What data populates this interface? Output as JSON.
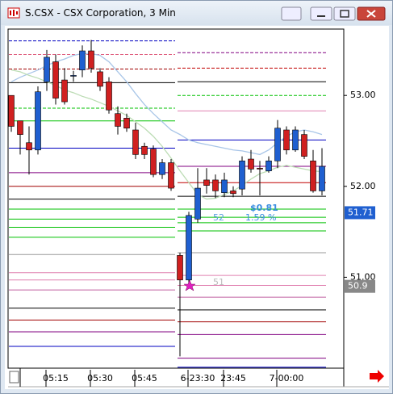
{
  "chart_data": {
    "type": "candlestick",
    "title": "S.CSX - CSX Corporation, 3 Min",
    "categories": [
      null,
      null,
      null,
      null,
      null,
      "05:15",
      null,
      null,
      null,
      null,
      "05:30",
      null,
      null,
      null,
      null,
      "05:45",
      null,
      null,
      null,
      null,
      null,
      "6-23:30",
      null,
      null,
      null,
      "23:45",
      null,
      null,
      null,
      null,
      null,
      "7-00:00",
      null,
      null,
      null,
      null
    ],
    "open": [
      53.0,
      52.72,
      52.48,
      52.4,
      53.15,
      53.37,
      53.17,
      53.22,
      53.28,
      53.49,
      53.26,
      53.15,
      52.8,
      52.75,
      52.62,
      52.44,
      52.41,
      52.13,
      52.26,
      51.24,
      50.97,
      51.64,
      52.07,
      52.07,
      51.93,
      51.95,
      51.97,
      52.3,
      52.2,
      52.17,
      52.28,
      52.62,
      52.4,
      52.57,
      52.28,
      51.95
    ],
    "high": [
      53.0,
      52.72,
      52.66,
      53.1,
      53.5,
      53.45,
      53.3,
      53.27,
      53.55,
      53.61,
      53.3,
      53.2,
      52.88,
      52.8,
      52.7,
      52.48,
      52.45,
      52.3,
      52.3,
      51.27,
      51.72,
      52.2,
      52.2,
      52.13,
      52.15,
      52.0,
      52.33,
      52.4,
      52.28,
      52.33,
      52.73,
      52.66,
      52.66,
      52.62,
      52.4,
      52.42
    ],
    "low": [
      52.6,
      52.35,
      52.13,
      52.35,
      53.05,
      52.9,
      52.9,
      53.15,
      53.2,
      53.25,
      53.05,
      52.8,
      52.57,
      52.6,
      52.3,
      52.3,
      52.1,
      52.08,
      51.95,
      50.13,
      50.93,
      51.6,
      51.92,
      51.87,
      51.88,
      51.88,
      51.9,
      52.15,
      51.9,
      52.15,
      52.2,
      52.35,
      52.38,
      52.3,
      51.93,
      51.9
    ],
    "close": [
      52.66,
      52.57,
      52.4,
      53.04,
      53.42,
      52.97,
      52.93,
      53.22,
      53.49,
      53.3,
      53.1,
      52.84,
      52.66,
      52.64,
      52.35,
      52.35,
      52.13,
      52.26,
      51.98,
      50.97,
      51.68,
      51.98,
      52.01,
      51.95,
      52.07,
      51.92,
      52.28,
      52.19,
      52.19,
      52.28,
      52.64,
      52.4,
      52.62,
      52.33,
      51.95,
      52.22
    ],
    "up_color": "#1f5fd0",
    "down_color": "#d02020",
    "overlays": [
      {
        "color": "#a9c6e8",
        "values": [
          53.15,
          53.2,
          53.24,
          53.28,
          53.33,
          53.37,
          53.4,
          53.44,
          53.46,
          53.46,
          53.44,
          53.37,
          53.26,
          53.15,
          53.02,
          52.9,
          52.8,
          52.71,
          52.62,
          52.57,
          52.51,
          52.48,
          52.46,
          52.44,
          52.42,
          52.4,
          52.39,
          52.37,
          52.35,
          52.4,
          52.48,
          52.55,
          52.6,
          52.62,
          52.6,
          52.57
        ]
      },
      {
        "color": "#bcdcb4",
        "values": [
          53.28,
          53.26,
          53.22,
          53.19,
          53.15,
          53.11,
          53.06,
          53.03,
          52.99,
          52.96,
          52.92,
          52.88,
          52.83,
          52.78,
          52.71,
          52.64,
          52.55,
          52.44,
          52.31,
          52.17,
          52.04,
          51.91,
          51.86,
          51.87,
          51.91,
          51.95,
          52.01,
          52.08,
          52.14,
          52.17,
          52.21,
          52.23,
          52.21,
          52.19,
          52.17,
          52.16
        ]
      }
    ],
    "levels_left": [
      {
        "value": 53.6,
        "color": "#0000c0",
        "dash": true
      },
      {
        "value": 53.45,
        "color": "#e06080",
        "dash": true
      },
      {
        "value": 53.29,
        "color": "#a00000",
        "dash": true
      },
      {
        "value": 53.14,
        "color": "#000000",
        "dash": false
      },
      {
        "value": 52.86,
        "color": "#00c000",
        "dash": true
      },
      {
        "value": 52.72,
        "color": "#00c000",
        "dash": false
      },
      {
        "value": 52.42,
        "color": "#0000c0",
        "dash": false
      },
      {
        "value": 52.15,
        "color": "#800080",
        "dash": false
      },
      {
        "value": 52.0,
        "color": "#a00000",
        "dash": false
      },
      {
        "value": 51.86,
        "color": "#000000",
        "dash": false
      },
      {
        "value": 51.75,
        "color": "#00c000",
        "dash": false
      },
      {
        "value": 51.64,
        "color": "#00c000",
        "dash": false
      },
      {
        "value": 51.55,
        "color": "#00c000",
        "dash": false
      },
      {
        "value": 51.44,
        "color": "#00c000",
        "dash": false
      },
      {
        "value": 51.25,
        "color": "#999999",
        "dash": false
      },
      {
        "value": 51.05,
        "color": "#e080b0",
        "dash": false
      },
      {
        "value": 50.97,
        "color": "#e080b0",
        "dash": false
      },
      {
        "value": 50.86,
        "color": "#c060a0",
        "dash": false
      },
      {
        "value": 50.66,
        "color": "#000000",
        "dash": false
      },
      {
        "value": 50.53,
        "color": "#a00000",
        "dash": false
      },
      {
        "value": 50.4,
        "color": "#800080",
        "dash": false
      },
      {
        "value": 50.24,
        "color": "#0000c0",
        "dash": false
      }
    ],
    "levels_right": [
      {
        "value": 53.47,
        "color": "#800080",
        "dash": true
      },
      {
        "value": 53.3,
        "color": "#c00000",
        "dash": true
      },
      {
        "value": 53.15,
        "color": "#000000",
        "dash": false
      },
      {
        "value": 53.0,
        "color": "#00c000",
        "dash": true
      },
      {
        "value": 52.83,
        "color": "#e080b0",
        "dash": false
      },
      {
        "value": 52.51,
        "color": "#0000c0",
        "dash": false
      },
      {
        "value": 52.22,
        "color": "#800080",
        "dash": false
      },
      {
        "value": 52.04,
        "color": "#c00000",
        "dash": false
      },
      {
        "value": 51.89,
        "color": "#000000",
        "dash": false
      },
      {
        "value": 51.75,
        "color": "#00c000",
        "dash": false
      },
      {
        "value": 51.66,
        "color": "#00c000",
        "dash": false
      },
      {
        "value": 51.6,
        "color": "#00c000",
        "dash": false
      },
      {
        "value": 51.51,
        "color": "#00c000",
        "dash": false
      },
      {
        "value": 51.27,
        "color": "#999999",
        "dash": false
      },
      {
        "value": 51.02,
        "color": "#e080b0",
        "dash": false
      },
      {
        "value": 50.91,
        "color": "#e080b0",
        "dash": false
      },
      {
        "value": 50.78,
        "color": "#c060a0",
        "dash": false
      },
      {
        "value": 50.64,
        "color": "#000000",
        "dash": false
      },
      {
        "value": 50.51,
        "color": "#a00000",
        "dash": false
      },
      {
        "value": 50.37,
        "color": "#800080",
        "dash": false
      },
      {
        "value": 50.11,
        "color": "#800080",
        "dash": false
      },
      {
        "value": 50.01,
        "color": "#0000c0",
        "dash": false
      }
    ],
    "ylim": [
      50.0,
      53.73
    ],
    "yticks": [
      {
        "value": 51,
        "label": "51.00"
      },
      {
        "value": 52,
        "label": "52.00"
      },
      {
        "value": 53,
        "label": "53.00"
      }
    ],
    "price_markers": [
      {
        "value": 51.71,
        "color": "#1f5fd0"
      },
      {
        "value": 50.9,
        "color": "#888888"
      }
    ],
    "annotations": [
      {
        "text": "$0.81",
        "color": "#3a8ee0"
      },
      {
        "text": "1.59 %",
        "color": "#3a8ee0"
      },
      {
        "text": "52",
        "color": "#5aa0e0"
      },
      {
        "text": "51",
        "color": "#bbbbbb"
      }
    ]
  }
}
